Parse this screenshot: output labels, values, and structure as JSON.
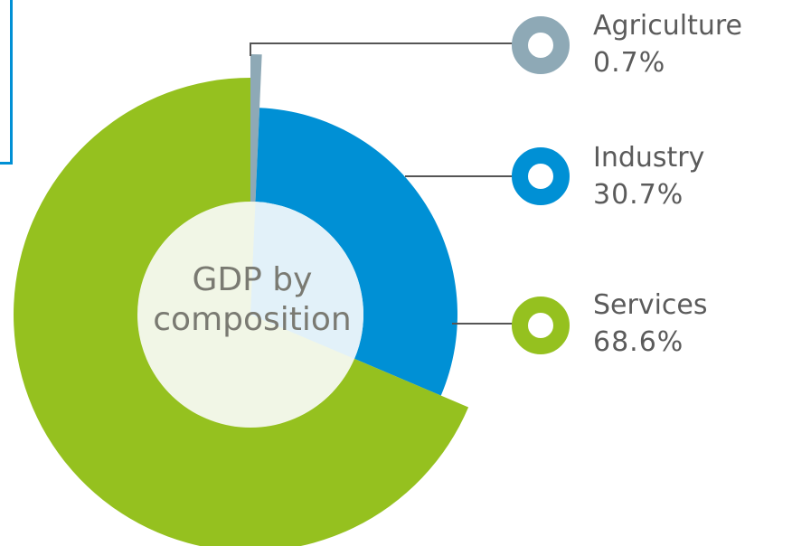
{
  "chart_data": {
    "type": "pie",
    "variant": "donut",
    "center_label": {
      "line1": "GDP by",
      "line2": "composition"
    },
    "categories": [
      "Agriculture",
      "Industry",
      "Services"
    ],
    "values": [
      0.7,
      30.7,
      68.6
    ],
    "labels": [
      "0.7%",
      "30.7%",
      "68.6%"
    ],
    "colors": [
      "#8ea9b6",
      "#0090d5",
      "#95c11f"
    ],
    "legend_position": "right"
  },
  "legend": [
    {
      "name": "Agriculture",
      "pct": "0.7%",
      "color": "#8ea9b6"
    },
    {
      "name": "Industry",
      "pct": "30.7%",
      "color": "#0090d5"
    },
    {
      "name": "Services",
      "pct": "68.6%",
      "color": "#95c11f"
    }
  ]
}
